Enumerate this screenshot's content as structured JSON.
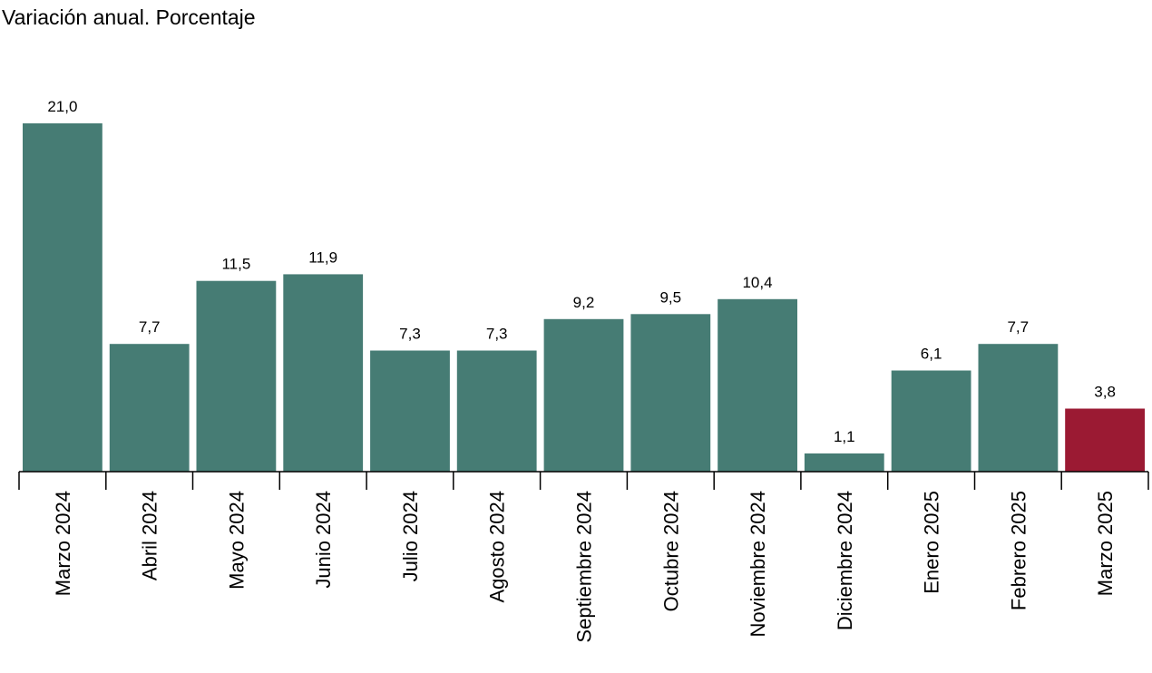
{
  "chart_data": {
    "type": "bar",
    "title": "Variación anual. Porcentaje",
    "categories": [
      "Marzo 2024",
      "Abril 2024",
      "Mayo 2024",
      "Junio 2024",
      "Julio 2024",
      "Agosto 2024",
      "Septiembre 2024",
      "Octubre 2024",
      "Noviembre 2024",
      "Diciembre 2024",
      "Enero 2025",
      "Febrero 2025",
      "Marzo 2025"
    ],
    "values": [
      21.0,
      7.7,
      11.5,
      11.9,
      7.3,
      7.3,
      9.2,
      9.5,
      10.4,
      1.1,
      6.1,
      7.7,
      3.8
    ],
    "value_labels": [
      "21,0",
      "7,7",
      "11,5",
      "11,9",
      "7,3",
      "7,3",
      "9,2",
      "9,5",
      "10,4",
      "1,1",
      "6,1",
      "7,7",
      "3,8"
    ],
    "bar_color": "#467c74",
    "highlight_color": "#9b1a33",
    "highlight_index": 12,
    "ylim": [
      0,
      21.0
    ],
    "grid": false,
    "legend": "none"
  }
}
